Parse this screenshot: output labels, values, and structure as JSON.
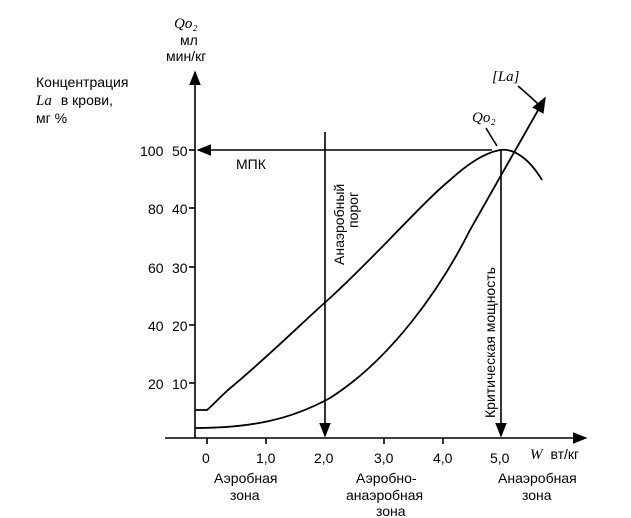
{
  "labels": {
    "qo2_axis": "Qo₂",
    "qo2_units_1": "мл",
    "qo2_units_2": "мин/кг",
    "la_axis_1": "Концентрация",
    "la_axis_2_italic": "La",
    "la_axis_2_rest": "в крови,",
    "la_axis_3": "мг %",
    "la_curve": "[La]",
    "qo2_curve": "Qo₂",
    "mpk": "МПК",
    "anaerobic_threshold_1": "Анаэробный",
    "anaerobic_threshold_2": "порог",
    "critical_power": "Критическая мощность",
    "x_axis_italic": "W",
    "x_axis_rest": "вт/кг",
    "zone_aerobic_1": "Аэробная",
    "zone_aerobic_2": "зона",
    "zone_mixed_1": "Аэробно-",
    "zone_mixed_2": "анаэробная",
    "zone_mixed_3": "зона",
    "zone_anaerobic_1": "Анаэробная",
    "zone_anaerobic_2": "зона"
  },
  "outer_ticks": [
    "20",
    "40",
    "60",
    "80",
    "100"
  ],
  "inner_ticks": [
    "10",
    "20",
    "30",
    "40",
    "50"
  ],
  "x_ticks": [
    "0",
    "1,0",
    "2,0",
    "3,0",
    "4,0",
    "5,0"
  ]
}
